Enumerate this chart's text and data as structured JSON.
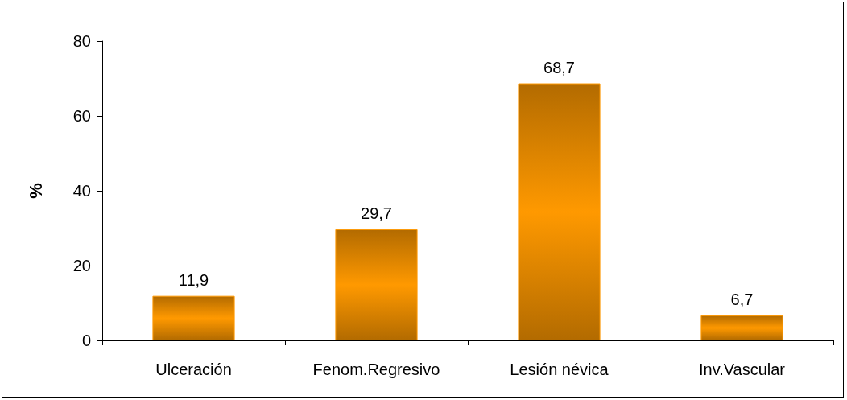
{
  "chart_data": {
    "type": "bar",
    "ylabel": "%",
    "categories": [
      "Ulceración",
      "Fenom.Regresivo",
      "Lesión névica",
      "Inv.Vascular"
    ],
    "values": [
      11.9,
      29.7,
      68.7,
      6.7
    ],
    "value_labels": [
      "11,9",
      "29,7",
      "68,7",
      "6,7"
    ],
    "color": "#ff9900",
    "ylim": [
      0,
      80
    ],
    "yticks": [
      0,
      20,
      40,
      60,
      80
    ],
    "grid": false
  }
}
